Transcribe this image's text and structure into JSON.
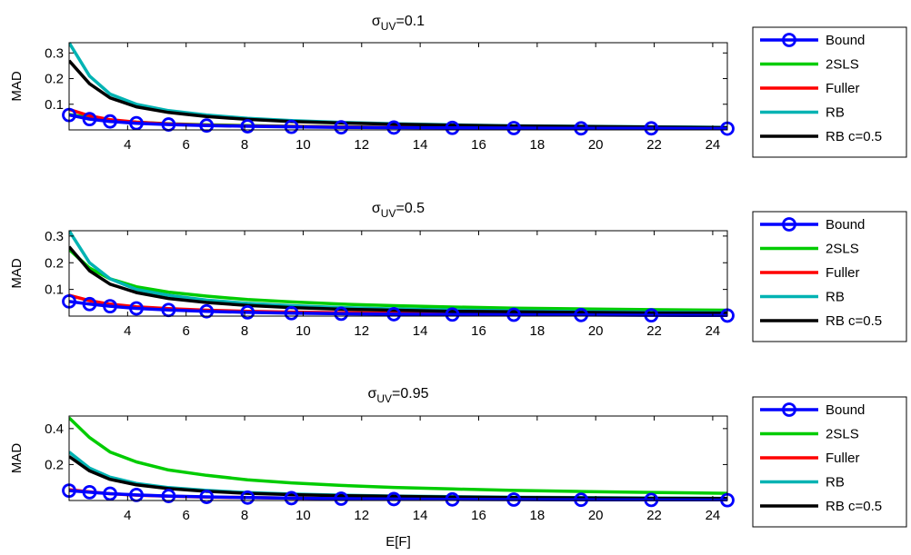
{
  "figure": {
    "xlabel": "E[F]",
    "ylabel": "MAD",
    "sigma_prefix": "σ",
    "sigma_sub": "UV"
  },
  "colors": {
    "Bound": "#0000ff",
    "2SLS": "#00cc00",
    "Fuller": "#ff0000",
    "RB": "#00b3b3",
    "RB c=0.5": "#000000",
    "axis": "#000000"
  },
  "chart_data": [
    {
      "type": "line",
      "title_value": "=0.1",
      "xlim": [
        2,
        24.5
      ],
      "ylim": [
        0,
        0.34
      ],
      "xticks": [
        "4",
        "6",
        "8",
        "10",
        "12",
        "14",
        "16",
        "18",
        "20",
        "22",
        "24"
      ],
      "yticks": [
        "0.1",
        "0.2",
        "0.3"
      ],
      "legend": [
        "Bound",
        "2SLS",
        "Fuller",
        "RB",
        "RB c=0.5"
      ],
      "legend_position": "right-outside",
      "x": [
        2.0,
        2.7,
        3.4,
        4.3,
        5.4,
        6.7,
        8.1,
        9.6,
        11.3,
        13.1,
        15.1,
        17.2,
        19.5,
        21.9,
        24.5
      ],
      "series": [
        {
          "name": "Bound",
          "markers": true,
          "values": [
            0.058,
            0.042,
            0.033,
            0.026,
            0.021,
            0.017,
            0.014,
            0.012,
            0.01,
            0.009,
            0.008,
            0.007,
            0.006,
            0.006,
            0.005
          ]
        },
        {
          "name": "2SLS",
          "markers": false,
          "values": [
            0.06,
            0.048,
            0.038,
            0.03,
            0.024,
            0.02,
            0.017,
            0.014,
            0.012,
            0.01,
            0.009,
            0.008,
            0.007,
            0.006,
            0.006
          ]
        },
        {
          "name": "Fuller",
          "markers": false,
          "values": [
            0.08,
            0.055,
            0.04,
            0.03,
            0.023,
            0.018,
            0.015,
            0.013,
            0.011,
            0.01,
            0.009,
            0.008,
            0.007,
            0.006,
            0.006
          ]
        },
        {
          "name": "RB",
          "markers": false,
          "values": [
            0.34,
            0.21,
            0.14,
            0.1,
            0.075,
            0.058,
            0.045,
            0.036,
            0.029,
            0.024,
            0.02,
            0.016,
            0.014,
            0.012,
            0.01
          ]
        },
        {
          "name": "RB c=0.5",
          "markers": false,
          "values": [
            0.27,
            0.18,
            0.125,
            0.09,
            0.068,
            0.052,
            0.041,
            0.033,
            0.027,
            0.022,
            0.018,
            0.015,
            0.013,
            0.011,
            0.009
          ]
        }
      ]
    },
    {
      "type": "line",
      "title_value": "=0.5",
      "xlim": [
        2,
        24.5
      ],
      "ylim": [
        0,
        0.32
      ],
      "xticks": [
        "4",
        "6",
        "8",
        "10",
        "12",
        "14",
        "16",
        "18",
        "20",
        "22",
        "24"
      ],
      "yticks": [
        "0.1",
        "0.2",
        "0.3"
      ],
      "legend": [
        "Bound",
        "2SLS",
        "Fuller",
        "RB",
        "RB c=0.5"
      ],
      "legend_position": "right-outside",
      "x": [
        2.0,
        2.7,
        3.4,
        4.3,
        5.4,
        6.7,
        8.1,
        9.6,
        11.3,
        13.1,
        15.1,
        17.2,
        19.5,
        21.9,
        24.5
      ],
      "series": [
        {
          "name": "Bound",
          "markers": true,
          "values": [
            0.055,
            0.045,
            0.037,
            0.029,
            0.023,
            0.018,
            0.014,
            0.011,
            0.009,
            0.007,
            0.006,
            0.005,
            0.004,
            0.003,
            0.002
          ]
        },
        {
          "name": "2SLS",
          "markers": false,
          "values": [
            0.25,
            0.18,
            0.14,
            0.11,
            0.09,
            0.075,
            0.062,
            0.053,
            0.045,
            0.039,
            0.034,
            0.03,
            0.027,
            0.024,
            0.022
          ]
        },
        {
          "name": "Fuller",
          "markers": false,
          "values": [
            0.078,
            0.058,
            0.045,
            0.035,
            0.028,
            0.022,
            0.018,
            0.015,
            0.013,
            0.011,
            0.01,
            0.009,
            0.008,
            0.007,
            0.006
          ]
        },
        {
          "name": "RB",
          "markers": false,
          "values": [
            0.32,
            0.2,
            0.14,
            0.1,
            0.078,
            0.06,
            0.048,
            0.039,
            0.032,
            0.027,
            0.023,
            0.02,
            0.017,
            0.015,
            0.013
          ]
        },
        {
          "name": "RB c=0.5",
          "markers": false,
          "values": [
            0.26,
            0.17,
            0.12,
            0.088,
            0.066,
            0.051,
            0.04,
            0.032,
            0.026,
            0.022,
            0.018,
            0.016,
            0.014,
            0.012,
            0.011
          ]
        }
      ]
    },
    {
      "type": "line",
      "title_value": "=0.95",
      "xlim": [
        2,
        24.5
      ],
      "ylim": [
        0,
        0.47
      ],
      "xticks": [
        "4",
        "6",
        "8",
        "10",
        "12",
        "14",
        "16",
        "18",
        "20",
        "22",
        "24"
      ],
      "yticks": [
        "0.2",
        "0.4"
      ],
      "legend": [
        "Bound",
        "2SLS",
        "Fuller",
        "RB",
        "RB c=0.5"
      ],
      "legend_position": "right-outside",
      "x": [
        2.0,
        2.7,
        3.4,
        4.3,
        5.4,
        6.7,
        8.1,
        9.6,
        11.3,
        13.1,
        15.1,
        17.2,
        19.5,
        21.9,
        24.5
      ],
      "series": [
        {
          "name": "Bound",
          "markers": true,
          "values": [
            0.055,
            0.046,
            0.038,
            0.031,
            0.025,
            0.02,
            0.016,
            0.013,
            0.01,
            0.008,
            0.006,
            0.005,
            0.004,
            0.003,
            0.002
          ]
        },
        {
          "name": "2SLS",
          "markers": false,
          "values": [
            0.46,
            0.35,
            0.27,
            0.215,
            0.17,
            0.14,
            0.115,
            0.098,
            0.084,
            0.073,
            0.064,
            0.056,
            0.05,
            0.045,
            0.04
          ]
        },
        {
          "name": "Fuller",
          "markers": false,
          "values": [
            0.06,
            0.048,
            0.038,
            0.03,
            0.024,
            0.019,
            0.016,
            0.013,
            0.011,
            0.01,
            0.009,
            0.008,
            0.007,
            0.006,
            0.006
          ]
        },
        {
          "name": "RB",
          "markers": false,
          "values": [
            0.27,
            0.18,
            0.13,
            0.095,
            0.072,
            0.056,
            0.044,
            0.036,
            0.03,
            0.025,
            0.021,
            0.018,
            0.016,
            0.014,
            0.012
          ]
        },
        {
          "name": "RB c=0.5",
          "markers": false,
          "values": [
            0.245,
            0.165,
            0.118,
            0.087,
            0.066,
            0.051,
            0.04,
            0.033,
            0.027,
            0.023,
            0.019,
            0.016,
            0.014,
            0.012,
            0.011
          ]
        }
      ]
    }
  ]
}
